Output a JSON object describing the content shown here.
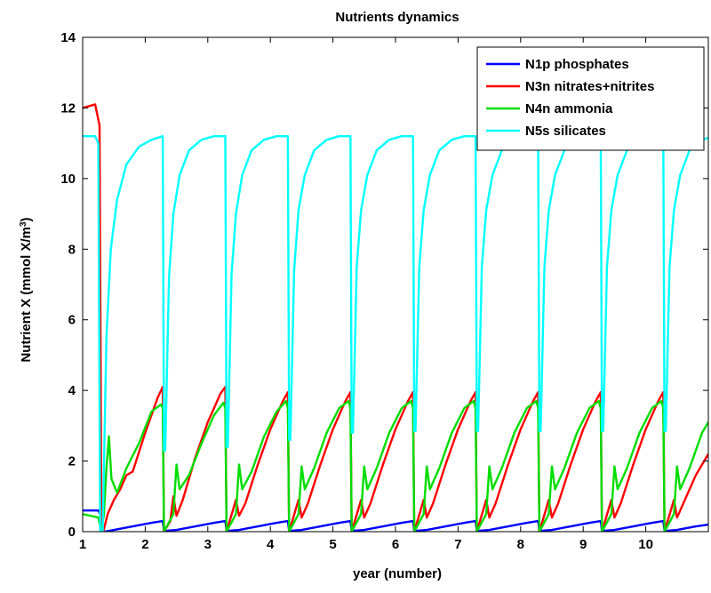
{
  "chart_data": {
    "type": "line",
    "title": "Nutrients dynamics",
    "xlabel": "year (number)",
    "ylabel_main": "Nutrient X (mmol X/m",
    "ylabel_sup": "3",
    "ylabel_tail": ")",
    "xlim": [
      1,
      11
    ],
    "ylim": [
      0,
      14
    ],
    "xticks": [
      1,
      2,
      3,
      4,
      5,
      6,
      7,
      8,
      9,
      10
    ],
    "yticks": [
      0,
      2,
      4,
      6,
      8,
      10,
      12,
      14
    ],
    "legend_position": "top-right",
    "series": [
      {
        "name": "N1p phosphates",
        "color": "#0000ff",
        "x": [
          1.0,
          1.25,
          1.28,
          1.3,
          1.35,
          1.5,
          1.8,
          2.1,
          2.28,
          2.3,
          2.5,
          2.8,
          3.1,
          3.28,
          3.3,
          3.5,
          3.8,
          4.1,
          4.28,
          4.3,
          4.5,
          4.8,
          5.1,
          5.28,
          5.3,
          5.5,
          5.8,
          6.1,
          6.28,
          6.3,
          6.5,
          6.8,
          7.1,
          7.28,
          7.3,
          7.5,
          7.8,
          8.1,
          8.28,
          8.3,
          8.5,
          8.8,
          9.1,
          9.28,
          9.3,
          9.5,
          9.8,
          10.1,
          10.28,
          10.3,
          10.5,
          10.8,
          11.0
        ],
        "y": [
          0.6,
          0.6,
          0.5,
          0.0,
          0.0,
          0.05,
          0.15,
          0.25,
          0.3,
          0.02,
          0.05,
          0.15,
          0.25,
          0.3,
          0.02,
          0.05,
          0.15,
          0.25,
          0.3,
          0.02,
          0.05,
          0.15,
          0.25,
          0.3,
          0.02,
          0.05,
          0.15,
          0.25,
          0.3,
          0.02,
          0.05,
          0.15,
          0.25,
          0.3,
          0.02,
          0.05,
          0.15,
          0.25,
          0.3,
          0.02,
          0.05,
          0.15,
          0.25,
          0.3,
          0.02,
          0.05,
          0.15,
          0.25,
          0.3,
          0.02,
          0.05,
          0.15,
          0.2
        ]
      },
      {
        "name": "N3n nitrates+nitrites",
        "color": "#ff0000",
        "x": [
          1.0,
          1.2,
          1.27,
          1.3,
          1.33,
          1.4,
          1.5,
          1.6,
          1.7,
          1.8,
          2.0,
          2.2,
          2.28,
          2.3,
          2.4,
          2.45,
          2.5,
          2.6,
          2.8,
          3.0,
          3.2,
          3.28,
          3.3,
          3.45,
          3.5,
          3.6,
          3.8,
          4.0,
          4.2,
          4.28,
          4.3,
          4.45,
          4.5,
          4.6,
          4.8,
          5.0,
          5.2,
          5.28,
          5.3,
          5.45,
          5.5,
          5.6,
          5.8,
          6.0,
          6.2,
          6.28,
          6.3,
          6.45,
          6.5,
          6.6,
          6.8,
          7.0,
          7.2,
          7.28,
          7.3,
          7.45,
          7.5,
          7.6,
          7.8,
          8.0,
          8.2,
          8.28,
          8.3,
          8.45,
          8.5,
          8.6,
          8.8,
          9.0,
          9.2,
          9.28,
          9.3,
          9.45,
          9.5,
          9.6,
          9.8,
          10.0,
          10.2,
          10.28,
          10.3,
          10.45,
          10.5,
          10.6,
          10.8,
          11.0
        ],
        "y": [
          12.0,
          12.1,
          11.5,
          0.0,
          0.0,
          0.5,
          0.9,
          1.2,
          1.6,
          1.7,
          2.8,
          3.8,
          4.1,
          0.0,
          0.3,
          1.0,
          0.45,
          0.9,
          2.1,
          3.1,
          3.9,
          4.1,
          0.0,
          0.9,
          0.45,
          0.8,
          1.9,
          2.9,
          3.7,
          3.95,
          0.0,
          0.9,
          0.4,
          0.8,
          1.9,
          2.9,
          3.7,
          3.95,
          0.0,
          0.9,
          0.4,
          0.8,
          1.9,
          2.9,
          3.7,
          3.95,
          0.0,
          0.9,
          0.4,
          0.8,
          1.9,
          2.9,
          3.7,
          3.95,
          0.0,
          0.9,
          0.4,
          0.8,
          1.9,
          2.9,
          3.7,
          3.95,
          0.0,
          0.9,
          0.4,
          0.8,
          1.9,
          2.9,
          3.7,
          3.95,
          0.0,
          0.9,
          0.4,
          0.8,
          1.9,
          2.9,
          3.7,
          3.95,
          0.0,
          0.9,
          0.4,
          0.8,
          1.6,
          2.2
        ]
      },
      {
        "name": "N4n ammonia",
        "color": "#00dd00",
        "x": [
          1.0,
          1.25,
          1.3,
          1.34,
          1.38,
          1.42,
          1.46,
          1.55,
          1.7,
          1.9,
          2.1,
          2.25,
          2.28,
          2.3,
          2.45,
          2.5,
          2.55,
          2.7,
          2.9,
          3.1,
          3.25,
          3.28,
          3.3,
          3.45,
          3.5,
          3.55,
          3.7,
          3.9,
          4.1,
          4.25,
          4.28,
          4.3,
          4.45,
          4.5,
          4.55,
          4.7,
          4.9,
          5.1,
          5.25,
          5.28,
          5.3,
          5.45,
          5.5,
          5.55,
          5.7,
          5.9,
          6.1,
          6.25,
          6.28,
          6.3,
          6.45,
          6.5,
          6.55,
          6.7,
          6.9,
          7.1,
          7.25,
          7.28,
          7.3,
          7.45,
          7.5,
          7.55,
          7.7,
          7.9,
          8.1,
          8.25,
          8.28,
          8.3,
          8.45,
          8.5,
          8.55,
          8.7,
          8.9,
          9.1,
          9.25,
          9.28,
          9.3,
          9.45,
          9.5,
          9.55,
          9.7,
          9.9,
          10.1,
          10.25,
          10.28,
          10.3,
          10.45,
          10.5,
          10.55,
          10.7,
          10.9,
          11.0
        ],
        "y": [
          0.5,
          0.4,
          0.0,
          0.5,
          1.8,
          2.7,
          1.5,
          1.1,
          1.8,
          2.5,
          3.4,
          3.6,
          3.5,
          0.0,
          0.5,
          1.9,
          1.2,
          1.6,
          2.5,
          3.3,
          3.65,
          3.5,
          0.0,
          0.5,
          1.9,
          1.2,
          1.7,
          2.7,
          3.4,
          3.7,
          3.5,
          0.0,
          0.5,
          1.85,
          1.2,
          1.8,
          2.8,
          3.5,
          3.7,
          3.5,
          0.0,
          0.5,
          1.85,
          1.2,
          1.8,
          2.8,
          3.5,
          3.7,
          3.5,
          0.0,
          0.5,
          1.85,
          1.2,
          1.8,
          2.8,
          3.5,
          3.7,
          3.5,
          0.0,
          0.5,
          1.85,
          1.2,
          1.8,
          2.8,
          3.5,
          3.7,
          3.5,
          0.0,
          0.5,
          1.85,
          1.2,
          1.8,
          2.8,
          3.5,
          3.7,
          3.5,
          0.0,
          0.5,
          1.85,
          1.2,
          1.8,
          2.8,
          3.5,
          3.7,
          3.5,
          0.0,
          0.5,
          1.85,
          1.2,
          1.8,
          2.8,
          3.1
        ]
      },
      {
        "name": "N5s silicates",
        "color": "#00ffff",
        "x": [
          1.0,
          1.2,
          1.25,
          1.28,
          1.32,
          1.38,
          1.45,
          1.55,
          1.7,
          1.9,
          2.1,
          2.28,
          2.3,
          2.32,
          2.38,
          2.45,
          2.55,
          2.7,
          2.9,
          3.1,
          3.28,
          3.3,
          3.32,
          3.38,
          3.45,
          3.55,
          3.7,
          3.9,
          4.1,
          4.28,
          4.3,
          4.32,
          4.38,
          4.45,
          4.55,
          4.7,
          4.9,
          5.1,
          5.28,
          5.3,
          5.32,
          5.38,
          5.45,
          5.55,
          5.7,
          5.9,
          6.1,
          6.28,
          6.3,
          6.32,
          6.38,
          6.45,
          6.55,
          6.7,
          6.9,
          7.1,
          7.28,
          7.3,
          7.32,
          7.38,
          7.45,
          7.55,
          7.7,
          7.9,
          8.1,
          8.28,
          8.3,
          8.32,
          8.38,
          8.45,
          8.55,
          8.7,
          8.9,
          9.1,
          9.28,
          9.3,
          9.32,
          9.38,
          9.45,
          9.55,
          9.7,
          9.9,
          10.1,
          10.28,
          10.3,
          10.32,
          10.38,
          10.45,
          10.55,
          10.7,
          10.9,
          11.0
        ],
        "y": [
          11.2,
          11.2,
          11.0,
          0.0,
          0.0,
          5.5,
          8.0,
          9.4,
          10.4,
          10.9,
          11.1,
          11.2,
          2.3,
          2.3,
          7.2,
          9.0,
          10.1,
          10.8,
          11.1,
          11.2,
          11.2,
          2.4,
          2.4,
          7.3,
          9.0,
          10.1,
          10.8,
          11.1,
          11.2,
          11.2,
          2.6,
          2.6,
          7.4,
          9.1,
          10.1,
          10.8,
          11.1,
          11.2,
          11.2,
          2.8,
          2.8,
          7.5,
          9.1,
          10.1,
          10.8,
          11.1,
          11.2,
          11.2,
          2.85,
          2.85,
          7.5,
          9.1,
          10.1,
          10.8,
          11.1,
          11.2,
          11.2,
          2.85,
          2.85,
          7.5,
          9.1,
          10.1,
          10.8,
          11.1,
          11.2,
          11.2,
          2.85,
          2.85,
          7.5,
          9.1,
          10.1,
          10.8,
          11.1,
          11.2,
          11.2,
          2.85,
          2.85,
          7.5,
          9.1,
          10.1,
          10.8,
          11.1,
          11.2,
          11.2,
          2.85,
          2.85,
          7.5,
          9.1,
          10.1,
          10.8,
          11.1,
          11.15
        ]
      }
    ]
  }
}
